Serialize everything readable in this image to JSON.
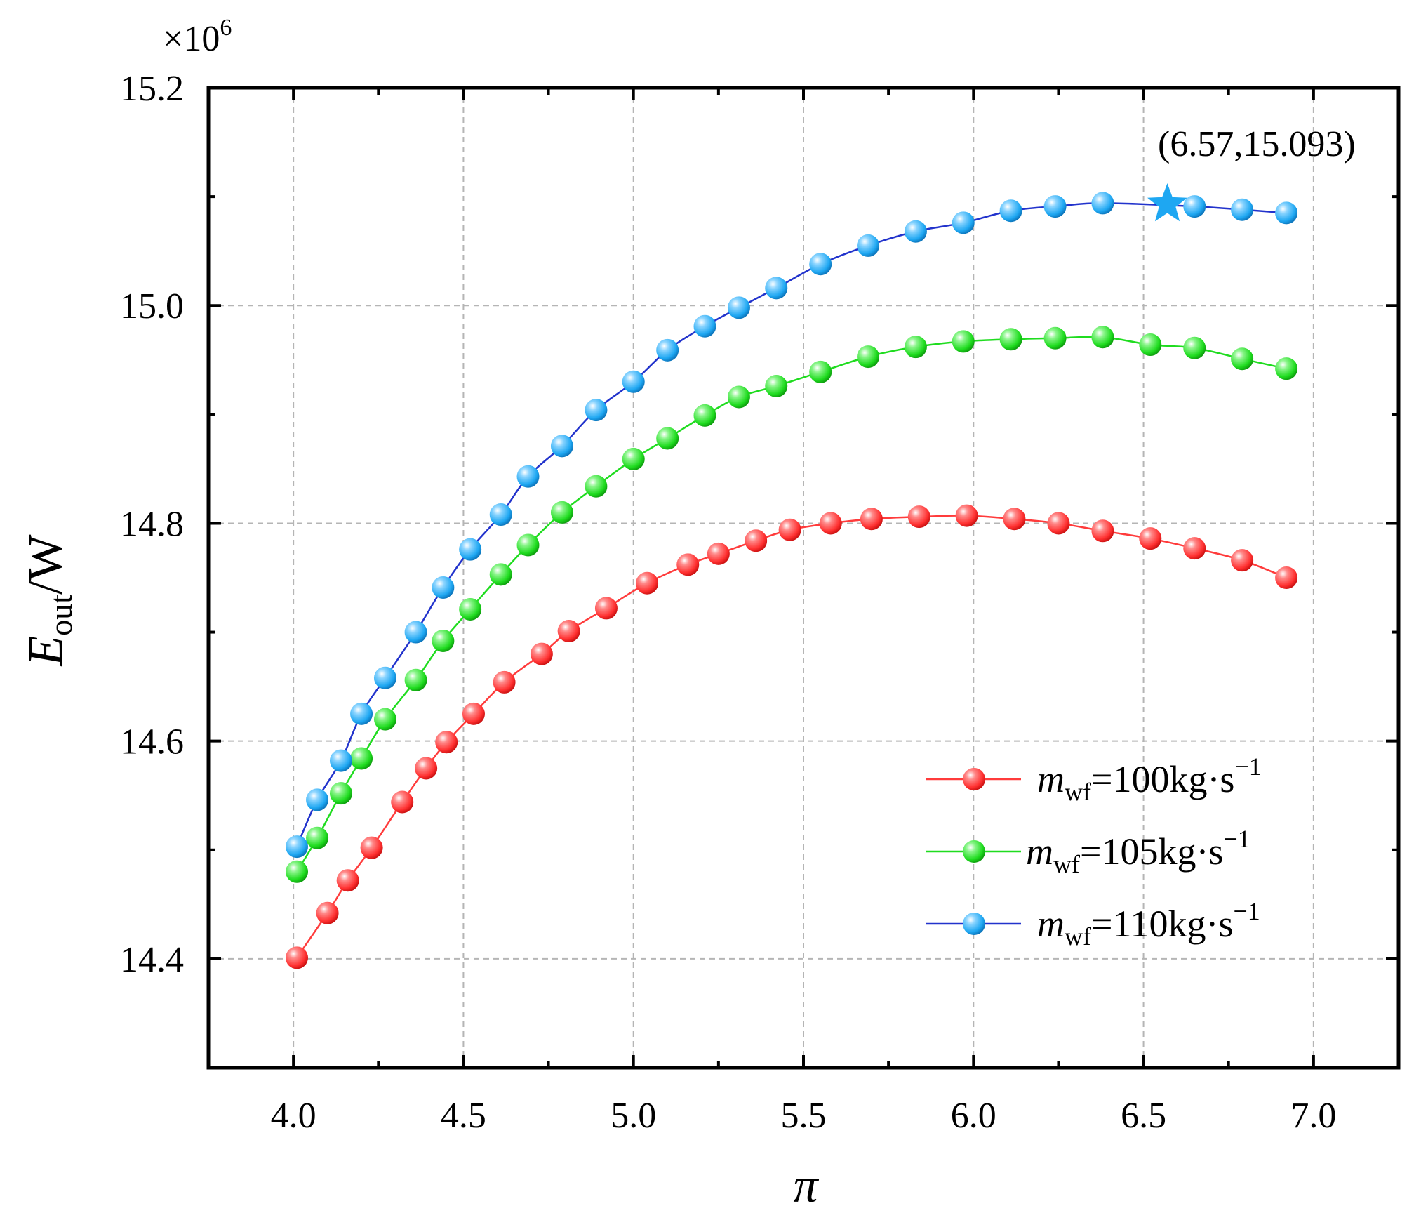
{
  "chart_data": {
    "type": "line",
    "xlabel": "π",
    "ylabel": {
      "main": "E",
      "sub": "out",
      "suffix": "/W"
    },
    "y_multiplier": {
      "base": "×10",
      "exp": "6"
    },
    "xlim": [
      3.75,
      7.25
    ],
    "ylim": [
      14.3,
      15.2
    ],
    "xticks": [
      4.0,
      4.5,
      5.0,
      5.5,
      6.0,
      6.5,
      7.0
    ],
    "xtick_labels": [
      "4.0",
      "4.5",
      "5.0",
      "5.5",
      "6.0",
      "6.5",
      "7.0"
    ],
    "yticks": [
      14.4,
      14.6,
      14.8,
      15.0,
      15.2
    ],
    "ytick_labels": [
      "14.4",
      "14.6",
      "14.8",
      "15.0",
      "15.2"
    ],
    "grid": true,
    "legend_position": "lower-right",
    "series": [
      {
        "name": "100",
        "label": {
          "sym": "m",
          "sub": "wf",
          "eq": "=100kg·s",
          "sup": "−1"
        },
        "color": "#ff3b3b",
        "x": [
          4.01,
          4.1,
          4.16,
          4.23,
          4.32,
          4.39,
          4.45,
          4.53,
          4.62,
          4.73,
          4.81,
          4.92,
          5.04,
          5.16,
          5.25,
          5.36,
          5.46,
          5.58,
          5.7,
          5.84,
          5.98,
          6.12,
          6.25,
          6.38,
          6.52,
          6.65,
          6.79,
          6.92
        ],
        "y": [
          14.401,
          14.442,
          14.472,
          14.502,
          14.544,
          14.575,
          14.599,
          14.625,
          14.654,
          14.68,
          14.701,
          14.722,
          14.745,
          14.762,
          14.772,
          14.784,
          14.794,
          14.8,
          14.804,
          14.806,
          14.807,
          14.804,
          14.8,
          14.793,
          14.786,
          14.777,
          14.766,
          14.75
        ]
      },
      {
        "name": "105",
        "label": {
          "sym": "m",
          "sub": "wf",
          "eq": "=105kg·s",
          "sup": "−1"
        },
        "color": "#1fdc1f",
        "x": [
          4.01,
          4.07,
          4.14,
          4.2,
          4.27,
          4.36,
          4.44,
          4.52,
          4.61,
          4.69,
          4.79,
          4.89,
          5.0,
          5.1,
          5.21,
          5.31,
          5.42,
          5.55,
          5.69,
          5.83,
          5.97,
          6.11,
          6.24,
          6.38,
          6.52,
          6.65,
          6.79,
          6.92
        ],
        "y": [
          14.48,
          14.511,
          14.552,
          14.584,
          14.62,
          14.656,
          14.692,
          14.721,
          14.753,
          14.78,
          14.81,
          14.834,
          14.859,
          14.878,
          14.899,
          14.916,
          14.926,
          14.939,
          14.953,
          14.962,
          14.967,
          14.969,
          14.97,
          14.971,
          14.964,
          14.961,
          14.951,
          14.942
        ]
      },
      {
        "name": "110",
        "label": {
          "sym": "m",
          "sub": "wf",
          "eq": "=110kg·s",
          "sup": "−1"
        },
        "color": "#1ea7f2",
        "x": [
          4.01,
          4.07,
          4.14,
          4.2,
          4.27,
          4.36,
          4.44,
          4.52,
          4.61,
          4.69,
          4.79,
          4.89,
          5.0,
          5.1,
          5.21,
          5.31,
          5.42,
          5.55,
          5.69,
          5.83,
          5.97,
          6.11,
          6.24,
          6.38,
          6.65,
          6.79,
          6.92
        ],
        "y": [
          14.503,
          14.546,
          14.582,
          14.625,
          14.658,
          14.7,
          14.741,
          14.776,
          14.808,
          14.843,
          14.871,
          14.904,
          14.93,
          14.959,
          14.981,
          14.998,
          15.016,
          15.038,
          15.055,
          15.068,
          15.076,
          15.087,
          15.091,
          15.094,
          15.091,
          15.088,
          15.085
        ]
      }
    ],
    "highlight": {
      "x": 6.57,
      "y": 15.093,
      "marker": "star",
      "color": "#1ea7f2",
      "label": "(6.57,15.093)"
    }
  }
}
